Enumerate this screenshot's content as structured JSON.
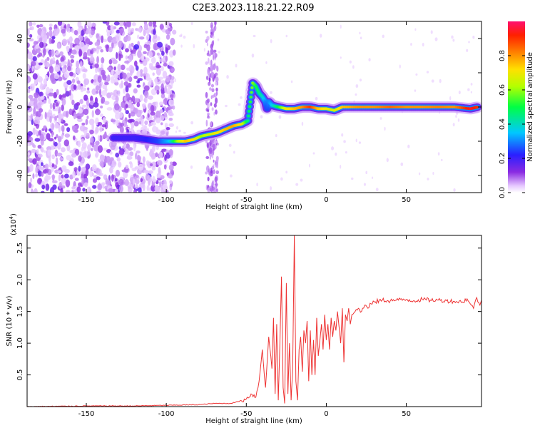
{
  "title": "C2E3.2023.118.21.22.R09",
  "colorbar": {
    "label": "Normalized spectral amplitude",
    "ticks": [
      "0.0",
      "0.2",
      "0.4",
      "0.6",
      "0.8"
    ],
    "tick_values": [
      0.0,
      0.2,
      0.4,
      0.6,
      0.8
    ],
    "range": [
      0,
      1
    ]
  },
  "chart_data": [
    {
      "type": "heatmap",
      "xlabel": "Height of straight line (km)",
      "ylabel": "Frequency (Hz)",
      "xlim": [
        -187,
        97
      ],
      "ylim": [
        -50,
        50
      ],
      "xticks": [
        -150,
        -100,
        -50,
        0,
        50
      ],
      "yticks": [
        -40,
        -20,
        0,
        20,
        40
      ],
      "ridge": {
        "x": [
          -133,
          -120,
          -112,
          -105,
          -98,
          -93,
          -88,
          -83,
          -78,
          -73,
          -68,
          -63,
          -58,
          -53,
          -49,
          -46,
          -44,
          -42,
          -40,
          -38,
          -37,
          -36,
          -34,
          -30,
          -25,
          -20,
          -15,
          -10,
          -5,
          0,
          5,
          10,
          20,
          30,
          40,
          50,
          60,
          70,
          80,
          90,
          95
        ],
        "y": [
          -18,
          -18,
          -19,
          -20,
          -20,
          -20,
          -20,
          -19,
          -17,
          -16,
          -15,
          -13,
          -11,
          -10,
          -8,
          14,
          12,
          8,
          6,
          3,
          -1,
          3,
          1,
          0,
          -1,
          -1,
          0,
          0,
          -1,
          -1,
          -2,
          0,
          0,
          0,
          0,
          0,
          0,
          0,
          0,
          -1,
          0
        ],
        "amplitude": [
          0.2,
          0.2,
          0.22,
          0.25,
          0.35,
          0.6,
          0.75,
          0.72,
          0.6,
          0.65,
          0.7,
          0.75,
          0.78,
          0.7,
          0.45,
          0.6,
          0.5,
          0.45,
          0.4,
          0.3,
          0.25,
          0.3,
          0.35,
          0.5,
          0.7,
          0.75,
          0.8,
          0.9,
          0.75,
          0.7,
          0.65,
          0.75,
          0.8,
          0.8,
          0.85,
          0.8,
          0.8,
          0.82,
          0.8,
          0.95,
          0.9
        ]
      },
      "noise_region_x": [
        -187,
        -95
      ],
      "noise_band_x": [
        -75,
        -68
      ]
    },
    {
      "type": "line",
      "xlabel": "Height of straight line (km)",
      "ylabel": "SNR (10 * v/v)",
      "y_multiplier": "(x10",
      "y_multiplier_exp": "4",
      "y_multiplier_close": ")",
      "xlim": [
        -187,
        97
      ],
      "ylim": [
        0,
        2.7
      ],
      "xticks": [
        -150,
        -100,
        -50,
        0,
        50
      ],
      "yticks": [
        0.5,
        1.0,
        1.5,
        2.0,
        2.5
      ],
      "color": "#ee3333",
      "series": [
        {
          "x": [
            -187,
            -150,
            -120,
            -100,
            -80,
            -70,
            -60,
            -55,
            -50,
            -47,
            -44,
            -42,
            -40,
            -38,
            -36,
            -34,
            -33,
            -32,
            -31,
            -30,
            -29,
            -28,
            -27,
            -26,
            -25,
            -24,
            -23,
            -22,
            -21,
            -20,
            -19,
            -18,
            -17,
            -16,
            -15,
            -14,
            -13,
            -12,
            -11,
            -10,
            -9,
            -8,
            -7,
            -6,
            -5,
            -4,
            -3,
            -2,
            -1,
            0,
            1,
            2,
            3,
            4,
            5,
            6,
            7,
            8,
            9,
            10,
            11,
            12,
            13,
            14,
            15,
            16,
            18,
            20,
            22,
            24,
            26,
            28,
            30,
            35,
            40,
            45,
            50,
            55,
            60,
            65,
            70,
            75,
            80,
            85,
            88,
            90,
            92,
            94,
            96,
            97
          ],
          "y": [
            0.0,
            0.01,
            0.01,
            0.02,
            0.03,
            0.05,
            0.05,
            0.08,
            0.12,
            0.2,
            0.15,
            0.4,
            0.9,
            0.3,
            1.1,
            0.6,
            1.4,
            0.2,
            1.3,
            0.1,
            1.0,
            2.05,
            0.3,
            0.05,
            1.95,
            0.2,
            1.0,
            0.1,
            0.6,
            2.7,
            0.4,
            0.1,
            0.9,
            1.1,
            0.55,
            1.2,
            1.0,
            1.35,
            0.4,
            1.2,
            0.5,
            1.05,
            0.5,
            1.4,
            0.8,
            1.05,
            1.3,
            0.9,
            1.45,
            1.05,
            1.3,
            0.9,
            1.4,
            1.1,
            1.35,
            1.2,
            1.5,
            1.25,
            1.0,
            1.55,
            0.7,
            1.45,
            1.35,
            1.55,
            1.3,
            1.45,
            1.5,
            1.55,
            1.5,
            1.6,
            1.55,
            1.62,
            1.65,
            1.68,
            1.67,
            1.68,
            1.69,
            1.67,
            1.69,
            1.68,
            1.68,
            1.67,
            1.66,
            1.65,
            1.7,
            1.62,
            1.55,
            1.72,
            1.6,
            1.68
          ]
        }
      ]
    }
  ]
}
